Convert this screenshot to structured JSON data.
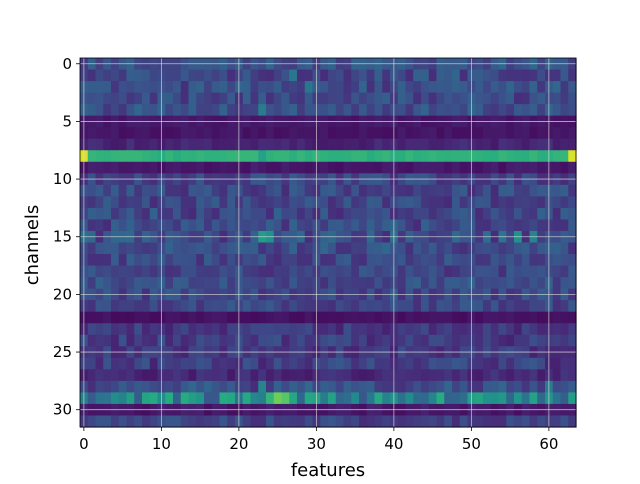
{
  "chart_data": {
    "type": "heatmap",
    "title": "",
    "xlabel": "features",
    "ylabel": "channels",
    "n_cols": 64,
    "n_rows": 32,
    "x_range": [
      0,
      63
    ],
    "y_range": [
      0,
      31
    ],
    "y_inverted": true,
    "colormap": "viridis",
    "value_range": [
      0,
      1
    ],
    "grid": true,
    "grid_color": "#dddddd",
    "x_ticks": [
      0,
      10,
      20,
      30,
      40,
      50,
      60
    ],
    "x_tick_labels": [
      "0",
      "10",
      "20",
      "30",
      "40",
      "50",
      "60"
    ],
    "y_ticks": [
      0,
      5,
      10,
      15,
      20,
      25,
      30
    ],
    "y_tick_labels": [
      "0",
      "5",
      "10",
      "15",
      "20",
      "25",
      "30"
    ],
    "row_base": [
      0.26,
      0.23,
      0.24,
      0.22,
      0.25,
      0.07,
      0.06,
      0.11,
      0.65,
      0.07,
      0.21,
      0.22,
      0.21,
      0.22,
      0.23,
      0.26,
      0.24,
      0.22,
      0.21,
      0.24,
      0.22,
      0.21,
      0.05,
      0.17,
      0.18,
      0.17,
      0.19,
      0.12,
      0.24,
      0.45,
      0.07,
      0.2
    ],
    "row_variation": [
      0.08,
      0.1,
      0.1,
      0.09,
      0.09,
      0.02,
      0.02,
      0.04,
      0.02,
      0.03,
      0.08,
      0.09,
      0.09,
      0.1,
      0.1,
      0.13,
      0.1,
      0.09,
      0.08,
      0.09,
      0.09,
      0.08,
      0.02,
      0.07,
      0.08,
      0.07,
      0.09,
      0.05,
      0.11,
      0.18,
      0.03,
      0.07
    ],
    "highlights": [
      {
        "row": 8,
        "col": 0,
        "value": 0.95
      },
      {
        "row": 8,
        "col": 63,
        "value": 0.95
      },
      {
        "row": 8,
        "col": 23,
        "value": 0.58
      },
      {
        "row": 29,
        "col": 25,
        "value": 0.78
      },
      {
        "row": 29,
        "col": 26,
        "value": 0.74
      },
      {
        "row": 29,
        "col": 24,
        "value": 0.66
      },
      {
        "row": 29,
        "col": 18,
        "value": 0.62
      },
      {
        "row": 29,
        "col": 19,
        "value": 0.6
      },
      {
        "row": 29,
        "col": 29,
        "value": 0.6
      },
      {
        "row": 29,
        "col": 30,
        "value": 0.58
      },
      {
        "row": 15,
        "col": 23,
        "value": 0.55
      },
      {
        "row": 15,
        "col": 24,
        "value": 0.5
      },
      {
        "row": 15,
        "col": 56,
        "value": 0.5
      },
      {
        "row": 15,
        "col": 58,
        "value": 0.45
      },
      {
        "row": 28,
        "col": 23,
        "value": 0.45
      },
      {
        "row": 28,
        "col": 60,
        "value": 0.42
      },
      {
        "row": 4,
        "col": 23,
        "value": 0.42
      },
      {
        "row": 1,
        "col": 27,
        "value": 0.4
      },
      {
        "row": 2,
        "col": 29,
        "value": 0.4
      }
    ]
  }
}
